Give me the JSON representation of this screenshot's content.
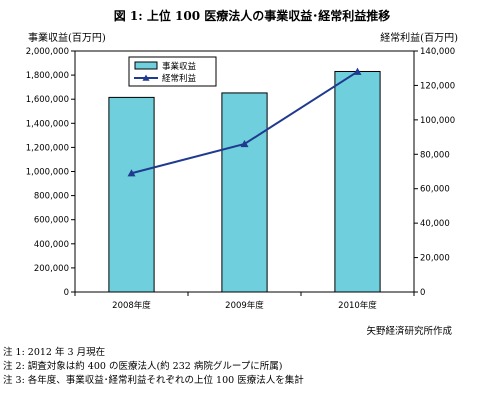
{
  "figure_title": "図 1: 上位 100 医療法人の事業収益･経常利益推移",
  "credit": "矢野経済研究所作成",
  "notes": [
    "注 1: 2012 年 3 月現在",
    "注 2: 調査対象は約 400 の医療法人(約 232 病院グループに所属)",
    "注 3: 各年度、事業収益･経常利益それぞれの上位 100 医療法人を集計"
  ],
  "chart_data": {
    "type": "bar",
    "title": "図 1: 上位 100 医療法人の事業収益･経常利益推移",
    "categories": [
      "2008年度",
      "2009年度",
      "2010年度"
    ],
    "series": [
      {
        "name": "事業収益",
        "type": "bar",
        "axis": "left",
        "color": "#6fcfdc",
        "values": [
          1615000,
          1652000,
          1830000
        ]
      },
      {
        "name": "経常利益",
        "type": "line",
        "axis": "right",
        "color": "#1f3a8f",
        "marker": "triangle",
        "values": [
          69000,
          86000,
          128000
        ]
      }
    ],
    "y_left": {
      "label": "事業収益(百万円)",
      "range": [
        0,
        2000000
      ],
      "ticks": [
        "0",
        "200,000",
        "400,000",
        "600,000",
        "800,000",
        "1,000,000",
        "1,200,000",
        "1,400,000",
        "1,600,000",
        "1,800,000",
        "2,000,000"
      ]
    },
    "y_right": {
      "label": "経常利益(百万円)",
      "range": [
        0,
        140000
      ],
      "ticks": [
        "0",
        "20,000",
        "40,000",
        "60,000",
        "80,000",
        "100,000",
        "120,000",
        "140,000"
      ]
    },
    "grid": false,
    "legend_position": "top-left"
  }
}
